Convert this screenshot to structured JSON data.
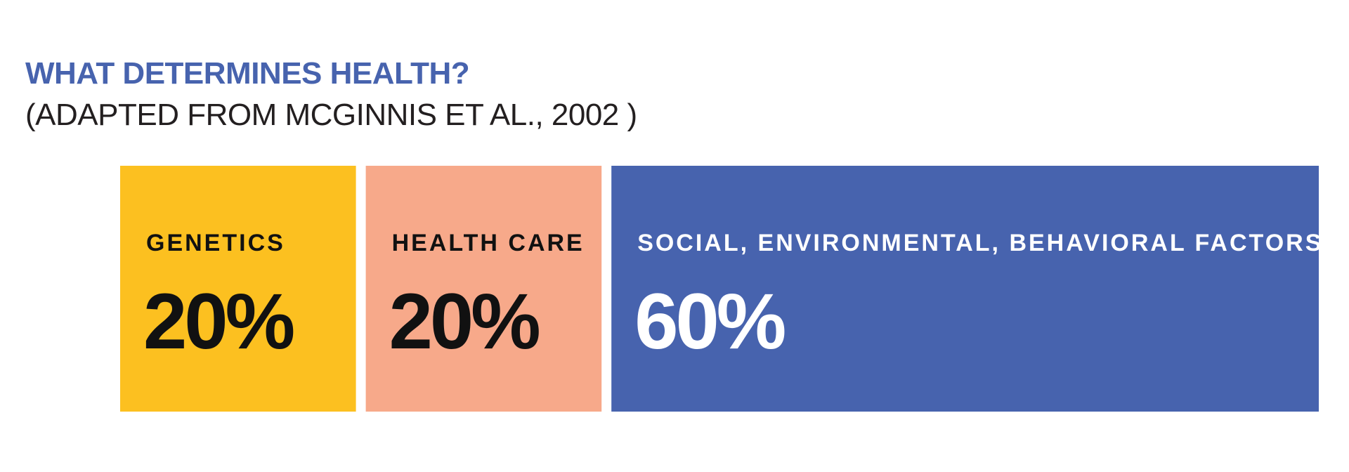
{
  "title": "WHAT DETERMINES HEALTH?",
  "subtitle": "(ADAPTED FROM MCGINNIS ET AL., 2002 )",
  "chart_data": {
    "type": "bar",
    "orientation": "horizontal-stacked",
    "title": "WHAT DETERMINES HEALTH?",
    "subtitle": "(ADAPTED FROM MCGINNIS ET AL., 2002 )",
    "categories": [
      "GENETICS",
      "HEALTH CARE",
      "SOCIAL, ENVIRONMENTAL, BEHAVIORAL FACTORS"
    ],
    "values": [
      20,
      20,
      60
    ],
    "value_labels": [
      "20%",
      "20%",
      "60%"
    ],
    "colors": [
      "#FCC020",
      "#F7A98A",
      "#4763AE"
    ],
    "text_colors": [
      "#111111",
      "#111111",
      "#FFFFFF"
    ],
    "unit": "%",
    "grid": false
  }
}
